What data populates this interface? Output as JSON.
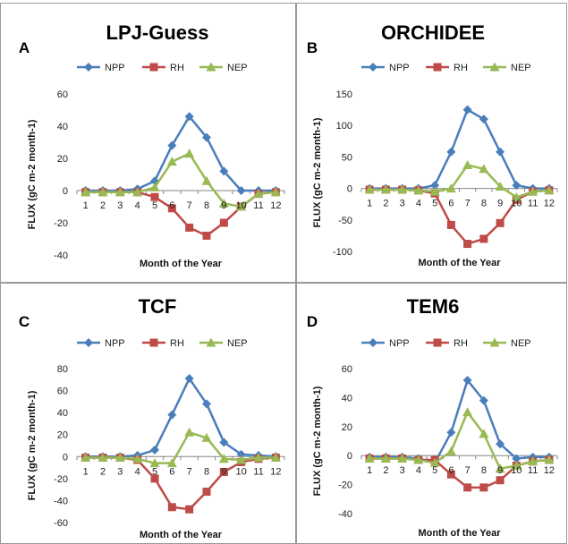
{
  "chart_data": [
    {
      "type": "line",
      "panel_letter": "A",
      "title": "LPJ-Guess",
      "xlabel": "Month of the Year",
      "ylabel": "FLUX (gC m-2 month-1)",
      "categories": [
        "1",
        "2",
        "3",
        "4",
        "5",
        "6",
        "7",
        "8",
        "9",
        "10",
        "11",
        "12"
      ],
      "ylim": [
        -40,
        60
      ],
      "yticks": [
        60,
        40,
        20,
        0,
        -20,
        -40
      ],
      "legend_position": "top",
      "series": [
        {
          "name": "NPP",
          "color": "#4a7ebb",
          "marker": "diamond",
          "values": [
            0,
            0,
            0,
            1,
            6,
            28,
            46,
            33,
            12,
            0,
            0,
            0
          ]
        },
        {
          "name": "RH",
          "color": "#be4b48",
          "marker": "square",
          "values": [
            -1,
            -1,
            -1,
            -1,
            -4,
            -11,
            -23,
            -28,
            -20,
            -10,
            -2,
            -1
          ]
        },
        {
          "name": "NEP",
          "color": "#98b954",
          "marker": "triangle",
          "values": [
            -1,
            -1,
            -1,
            -1,
            2,
            18,
            23,
            6,
            -8,
            -10,
            -2,
            -1
          ]
        }
      ]
    },
    {
      "type": "line",
      "panel_letter": "B",
      "title": "ORCHIDEE",
      "xlabel": "Month of the Year",
      "ylabel": "FLUX (gC m-2 month-1)",
      "categories": [
        "1",
        "2",
        "3",
        "4",
        "5",
        "6",
        "7",
        "8",
        "9",
        "10",
        "11",
        "12"
      ],
      "ylim": [
        -100,
        150
      ],
      "yticks": [
        150,
        100,
        50,
        0,
        -50,
        -100
      ],
      "legend_position": "top",
      "series": [
        {
          "name": "NPP",
          "color": "#4a7ebb",
          "marker": "diamond",
          "values": [
            0,
            0,
            0,
            0,
            5,
            58,
            125,
            110,
            58,
            5,
            0,
            0
          ]
        },
        {
          "name": "RH",
          "color": "#be4b48",
          "marker": "square",
          "values": [
            -2,
            -2,
            -2,
            -3,
            -8,
            -58,
            -88,
            -80,
            -55,
            -18,
            -5,
            -3
          ]
        },
        {
          "name": "NEP",
          "color": "#98b954",
          "marker": "triangle",
          "values": [
            -2,
            -2,
            -2,
            -3,
            -5,
            0,
            37,
            31,
            3,
            -14,
            -5,
            -3
          ]
        }
      ]
    },
    {
      "type": "line",
      "panel_letter": "C",
      "title": "TCF",
      "xlabel": "Month of the Year",
      "ylabel": "FLUX (gC m-2 month-1)",
      "categories": [
        "1",
        "2",
        "3",
        "4",
        "5",
        "6",
        "7",
        "8",
        "9",
        "10",
        "11",
        "12"
      ],
      "ylim": [
        -60,
        80
      ],
      "yticks": [
        80,
        60,
        40,
        20,
        0,
        -20,
        -40,
        -60
      ],
      "legend_position": "top",
      "series": [
        {
          "name": "NPP",
          "color": "#4a7ebb",
          "marker": "diamond",
          "values": [
            0,
            0,
            0,
            1,
            6,
            38,
            71,
            48,
            13,
            2,
            1,
            0
          ]
        },
        {
          "name": "RH",
          "color": "#be4b48",
          "marker": "square",
          "values": [
            -1,
            -1,
            -1,
            -3,
            -20,
            -46,
            -48,
            -32,
            -14,
            -5,
            -2,
            -1
          ]
        },
        {
          "name": "NEP",
          "color": "#98b954",
          "marker": "triangle",
          "values": [
            -1,
            -1,
            -1,
            -2,
            -6,
            -6,
            22,
            17,
            -2,
            -3,
            -1,
            -1
          ]
        }
      ]
    },
    {
      "type": "line",
      "panel_letter": "D",
      "title": "TEM6",
      "xlabel": "Month of the Year",
      "ylabel": "FLUX (gC m-2 month-1)",
      "categories": [
        "1",
        "2",
        "3",
        "4",
        "5",
        "6",
        "7",
        "8",
        "9",
        "10",
        "11",
        "12"
      ],
      "ylim": [
        -40,
        60
      ],
      "yticks": [
        60,
        40,
        20,
        0,
        -20,
        -40
      ],
      "legend_position": "top",
      "series": [
        {
          "name": "NPP",
          "color": "#4a7ebb",
          "marker": "diamond",
          "values": [
            -1,
            -1,
            -1,
            -2,
            -5,
            16,
            52,
            38,
            8,
            -2,
            -1,
            -1
          ]
        },
        {
          "name": "RH",
          "color": "#be4b48",
          "marker": "square",
          "values": [
            -2,
            -2,
            -2,
            -3,
            -3,
            -13,
            -22,
            -22,
            -17,
            -7,
            -4,
            -3
          ]
        },
        {
          "name": "NEP",
          "color": "#98b954",
          "marker": "triangle",
          "values": [
            -2,
            -2,
            -2,
            -3,
            -5,
            3,
            30,
            15,
            -9,
            -7,
            -4,
            -3
          ]
        }
      ]
    }
  ]
}
